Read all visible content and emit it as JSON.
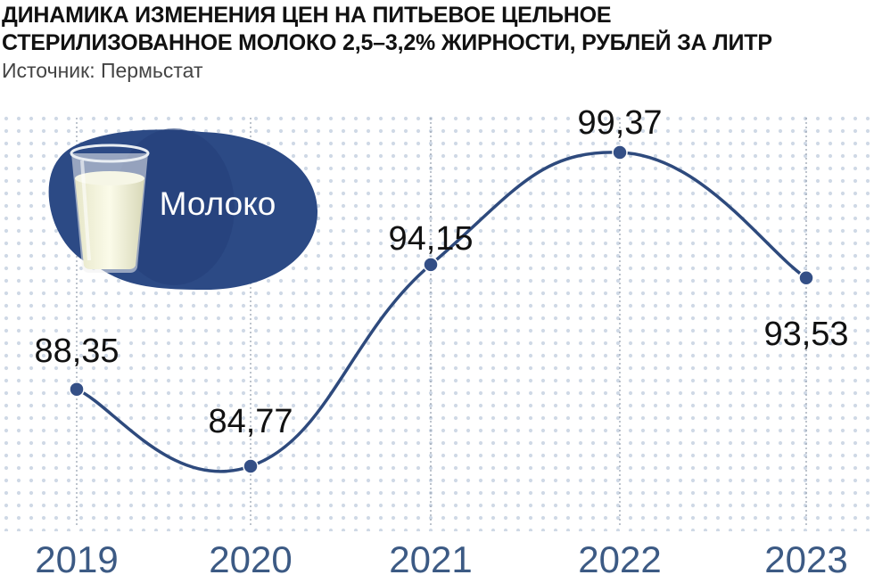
{
  "title_lines": [
    "ДИНАМИКА ИЗМЕНЕНИЯ ЦЕН НА ПИТЬЕВОЕ ЦЕЛЬНОЕ",
    "СТЕРИЛИЗОВАННОЕ МОЛОКО 2,5–3,2% ЖИРНОСТИ, РУБЛЕЙ ЗА ЛИТР"
  ],
  "source": "Источник: Пермьстат",
  "illustration": {
    "label": "Молоко",
    "icon": "milk-glass-icon"
  },
  "colors": {
    "line": "#2e4a7d",
    "marker": "#344f86",
    "blob": "#2c4a85",
    "axis_label": "#3c5a84",
    "dots": "#cfd9e6"
  },
  "chart_data": {
    "type": "line",
    "title": "ДИНАМИКА ИЗМЕНЕНИЯ ЦЕН НА ПИТЬЕВОЕ ЦЕЛЬНОЕ СТЕРИЛИЗОВАННОЕ МОЛОКО 2,5–3,2% ЖИРНОСТИ, РУБЛЕЙ ЗА ЛИТР",
    "x": [
      "2019",
      "2020",
      "2021",
      "2022",
      "2023"
    ],
    "values": [
      88.35,
      84.77,
      94.15,
      99.37,
      93.53
    ],
    "data_labels": [
      "88,35",
      "84,77",
      "94,15",
      "99,37",
      "93,53"
    ],
    "ylabel": "",
    "xlabel": "",
    "grid": "vertical dotted lines at each year",
    "legend": "none"
  }
}
